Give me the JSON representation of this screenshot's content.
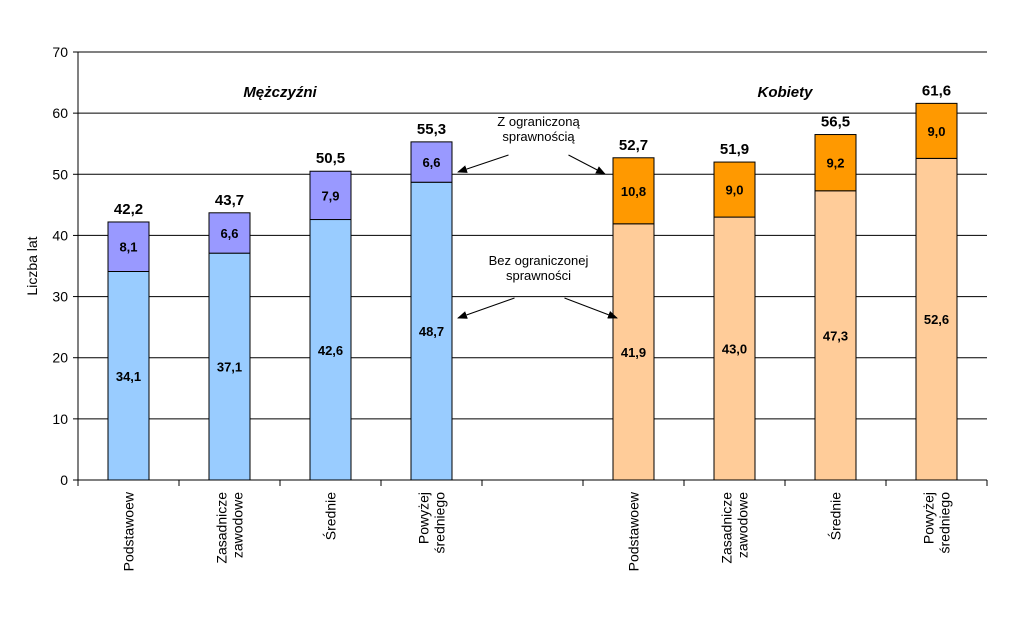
{
  "chart_data": {
    "type": "bar",
    "stacked": true,
    "ylabel": "Liczba lat",
    "ylim": [
      0,
      70
    ],
    "yticks": [
      0,
      10,
      20,
      30,
      40,
      50,
      60,
      70
    ],
    "grid": true,
    "groups": [
      {
        "title": "Mężczyźni",
        "categories": [
          [
            "Podstawoew"
          ],
          [
            "Zasadnicze",
            "zawodowe"
          ],
          [
            "Średnie"
          ],
          [
            "Powyżej",
            "średniego"
          ]
        ],
        "base": [
          34.1,
          37.1,
          42.6,
          48.7
        ],
        "base_labels": [
          "34,1",
          "37,1",
          "42,6",
          "48,7"
        ],
        "top": [
          8.1,
          6.6,
          7.9,
          6.6
        ],
        "top_labels": [
          "8,1",
          "6,6",
          "7,9",
          "6,6"
        ],
        "totals": [
          42.2,
          43.7,
          50.5,
          55.3
        ],
        "total_labels": [
          "42,2",
          "43,7",
          "50,5",
          "55,3"
        ],
        "base_color": "#99CCFF",
        "top_color": "#9999FF"
      },
      {
        "title": "Kobiety",
        "categories": [
          [
            "Podstawoew"
          ],
          [
            "Zasadnicze",
            "zawodowe"
          ],
          [
            "Średnie"
          ],
          [
            "Powyżej",
            "średniego"
          ]
        ],
        "base": [
          41.9,
          43.0,
          47.3,
          52.6
        ],
        "base_labels": [
          "41,9",
          "43,0",
          "47,3",
          "52,6"
        ],
        "top": [
          10.8,
          9.0,
          9.2,
          9.0
        ],
        "top_labels": [
          "10,8",
          "9,0",
          "9,2",
          "9,0"
        ],
        "totals": [
          52.7,
          51.9,
          56.5,
          61.6
        ],
        "total_labels": [
          "52,7",
          "51,9",
          "56,5",
          "61,6"
        ],
        "base_color": "#FFCC99",
        "top_color": "#FF9900"
      }
    ],
    "annotations": [
      {
        "lines": [
          "Z ograniczoną",
          "sprawnością"
        ]
      },
      {
        "lines": [
          "Bez ograniczonej",
          "sprawności"
        ]
      }
    ]
  }
}
